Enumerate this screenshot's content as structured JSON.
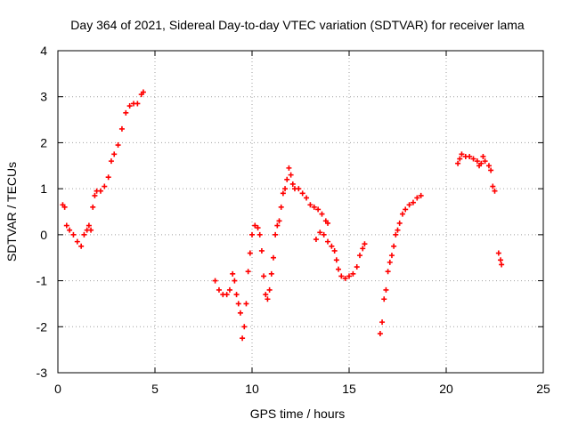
{
  "chart_data": {
    "type": "scatter",
    "title": "Day 364 of 2021, Sidereal Day-to-day VTEC variation (SDTVAR) for receiver lama",
    "xlabel": "GPS time / hours",
    "ylabel": "SDTVAR / TECUs",
    "xlim": [
      0,
      25
    ],
    "ylim": [
      -3,
      4
    ],
    "xticks": [
      "0",
      "5",
      "10",
      "15",
      "20",
      "25"
    ],
    "yticks": [
      "-3",
      "-2",
      "-1",
      "0",
      "1",
      "2",
      "3",
      "4"
    ],
    "grid": true,
    "legend": "none",
    "marker": "+",
    "color": "#ff0000",
    "series": [
      {
        "values": [
          [
            0.25,
            0.65
          ],
          [
            0.35,
            0.6
          ],
          [
            0.45,
            0.2
          ],
          [
            0.6,
            0.1
          ],
          [
            0.8,
            0.0
          ],
          [
            1.0,
            -0.15
          ],
          [
            1.2,
            -0.25
          ],
          [
            1.35,
            0.0
          ],
          [
            1.5,
            0.1
          ],
          [
            1.6,
            0.2
          ],
          [
            1.7,
            0.1
          ],
          [
            1.8,
            0.6
          ],
          [
            1.9,
            0.85
          ],
          [
            2.0,
            0.95
          ],
          [
            2.2,
            0.95
          ],
          [
            2.4,
            1.05
          ],
          [
            2.6,
            1.25
          ],
          [
            2.75,
            1.6
          ],
          [
            2.9,
            1.75
          ],
          [
            3.1,
            1.95
          ],
          [
            3.3,
            2.3
          ],
          [
            3.5,
            2.65
          ],
          [
            3.7,
            2.8
          ],
          [
            3.9,
            2.85
          ],
          [
            4.1,
            2.85
          ],
          [
            4.3,
            3.05
          ],
          [
            4.4,
            3.1
          ]
        ]
      },
      {
        "values": [
          [
            8.1,
            -1.0
          ],
          [
            8.3,
            -1.2
          ],
          [
            8.5,
            -1.3
          ],
          [
            8.7,
            -1.3
          ],
          [
            8.85,
            -1.2
          ],
          [
            9.0,
            -0.85
          ],
          [
            9.1,
            -1.0
          ],
          [
            9.2,
            -1.3
          ],
          [
            9.3,
            -1.5
          ],
          [
            9.4,
            -1.7
          ],
          [
            9.5,
            -2.25
          ],
          [
            9.6,
            -2.0
          ],
          [
            9.7,
            -1.5
          ],
          [
            9.8,
            -0.8
          ],
          [
            9.9,
            -0.4
          ],
          [
            10.0,
            0.0
          ],
          [
            10.15,
            0.2
          ],
          [
            10.3,
            0.15
          ],
          [
            10.4,
            0.0
          ],
          [
            10.5,
            -0.35
          ],
          [
            10.6,
            -0.9
          ],
          [
            10.7,
            -1.3
          ],
          [
            10.8,
            -1.4
          ],
          [
            10.9,
            -1.2
          ],
          [
            11.0,
            -0.85
          ],
          [
            11.1,
            -0.5
          ],
          [
            11.2,
            0.0
          ],
          [
            11.3,
            0.2
          ],
          [
            11.4,
            0.3
          ],
          [
            11.5,
            0.6
          ],
          [
            11.6,
            0.9
          ],
          [
            11.7,
            1.0
          ],
          [
            11.8,
            1.2
          ],
          [
            11.9,
            1.45
          ],
          [
            12.0,
            1.3
          ],
          [
            12.1,
            1.1
          ],
          [
            12.2,
            1.0
          ],
          [
            12.4,
            1.0
          ],
          [
            12.6,
            0.9
          ],
          [
            12.8,
            0.8
          ],
          [
            13.0,
            0.65
          ],
          [
            13.2,
            0.6
          ],
          [
            13.4,
            0.55
          ],
          [
            13.6,
            0.45
          ],
          [
            13.8,
            0.3
          ],
          [
            13.9,
            0.25
          ],
          [
            13.3,
            -0.1
          ],
          [
            13.5,
            0.05
          ],
          [
            13.7,
            0.0
          ],
          [
            13.9,
            -0.15
          ],
          [
            14.1,
            -0.25
          ],
          [
            14.25,
            -0.35
          ],
          [
            14.35,
            -0.55
          ],
          [
            14.45,
            -0.75
          ],
          [
            14.6,
            -0.9
          ],
          [
            14.8,
            -0.95
          ],
          [
            15.0,
            -0.9
          ],
          [
            15.2,
            -0.85
          ],
          [
            15.4,
            -0.7
          ],
          [
            15.55,
            -0.45
          ],
          [
            15.7,
            -0.3
          ],
          [
            15.8,
            -0.2
          ]
        ]
      },
      {
        "values": [
          [
            16.6,
            -2.15
          ],
          [
            16.7,
            -1.9
          ],
          [
            16.8,
            -1.4
          ],
          [
            16.9,
            -1.2
          ],
          [
            17.0,
            -0.8
          ],
          [
            17.1,
            -0.6
          ],
          [
            17.2,
            -0.45
          ],
          [
            17.3,
            -0.25
          ],
          [
            17.4,
            0.0
          ],
          [
            17.5,
            0.1
          ],
          [
            17.6,
            0.25
          ],
          [
            17.75,
            0.45
          ],
          [
            17.9,
            0.55
          ],
          [
            18.1,
            0.65
          ],
          [
            18.3,
            0.7
          ],
          [
            18.5,
            0.8
          ],
          [
            18.7,
            0.85
          ]
        ]
      },
      {
        "values": [
          [
            20.6,
            1.55
          ],
          [
            20.7,
            1.65
          ],
          [
            20.8,
            1.75
          ],
          [
            21.0,
            1.7
          ],
          [
            21.2,
            1.7
          ],
          [
            21.4,
            1.65
          ],
          [
            21.6,
            1.6
          ],
          [
            21.7,
            1.5
          ],
          [
            21.8,
            1.55
          ],
          [
            21.9,
            1.7
          ],
          [
            22.0,
            1.6
          ],
          [
            22.2,
            1.5
          ],
          [
            22.3,
            1.4
          ],
          [
            22.4,
            1.05
          ],
          [
            22.5,
            0.95
          ],
          [
            22.7,
            -0.4
          ],
          [
            22.8,
            -0.55
          ],
          [
            22.85,
            -0.65
          ]
        ]
      }
    ]
  }
}
